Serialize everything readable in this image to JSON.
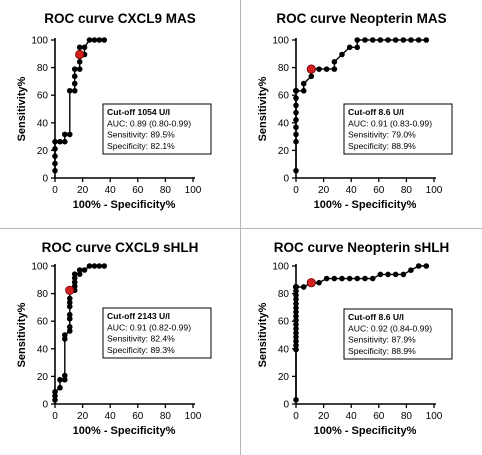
{
  "chart_data": [
    {
      "type": "line",
      "title": "ROC curve CXCL9 MAS",
      "xlabel": "100% - Specificity%",
      "ylabel": "Sensitivity%",
      "xlim": [
        0,
        100
      ],
      "ylim": [
        0,
        100
      ],
      "x_ticks": [
        "0",
        "20",
        "40",
        "60",
        "80",
        "100"
      ],
      "y_ticks": [
        "0",
        "20",
        "40",
        "60",
        "80",
        "100"
      ],
      "grid": false,
      "series": [
        {
          "x": [
            0,
            0,
            0,
            0,
            0,
            3.6,
            7.1,
            7.1,
            10.7,
            10.7,
            14.3,
            14.3,
            14.3,
            14.3,
            17.9,
            17.9,
            17.9,
            17.9,
            17.9,
            21.4,
            21.4,
            25,
            28.6,
            32.1,
            35.7
          ],
          "y": [
            5.3,
            10.5,
            15.8,
            21.1,
            26.3,
            26.3,
            26.3,
            31.6,
            31.6,
            63.2,
            63.2,
            68.4,
            73.7,
            78.9,
            78.9,
            84.2,
            89.5,
            94.7,
            89.5,
            89.5,
            94.7,
            100,
            100,
            100,
            100
          ]
        }
      ],
      "cutoff_point": {
        "x": 17.9,
        "y": 89.5
      },
      "cutoff": {
        "head": "Cut-off 1054 U/l",
        "auc": "AUC: 0.89 (0.80-0.99)",
        "sensitivity": "Sensitivity: 89.5%",
        "specificity": "Specificity: 82.1%"
      }
    },
    {
      "type": "line",
      "title": "ROC curve Neopterin MAS",
      "xlabel": "100% - Specificity%",
      "ylabel": "Sensitivity%",
      "xlim": [
        0,
        100
      ],
      "ylim": [
        0,
        100
      ],
      "x_ticks": [
        "0",
        "20",
        "40",
        "60",
        "80",
        "100"
      ],
      "y_ticks": [
        "0",
        "20",
        "40",
        "60",
        "80",
        "100"
      ],
      "grid": false,
      "series": [
        {
          "x": [
            0,
            0,
            0,
            0,
            0,
            0,
            0,
            0,
            0,
            0,
            0,
            0,
            0,
            0,
            0,
            5.6,
            5.6,
            11.1,
            11.1,
            16.7,
            22.2,
            27.8,
            27.8,
            33.3,
            38.9,
            44.4,
            44.4,
            50,
            55.6,
            61.1,
            66.7,
            72.2,
            77.8,
            83.3,
            88.9,
            94.4
          ],
          "y": [
            5.3,
            26.3,
            31.6,
            36.8,
            42.1,
            47.4,
            52.6,
            57.9,
            63.2,
            63.2,
            63.2,
            63.2,
            63.2,
            63.2,
            63.2,
            63.2,
            68.4,
            73.7,
            78.9,
            78.9,
            78.9,
            78.9,
            84.2,
            89.5,
            94.7,
            94.7,
            100,
            100,
            100,
            100,
            100,
            100,
            100,
            100,
            100,
            100
          ]
        }
      ],
      "cutoff_point": {
        "x": 11.1,
        "y": 78.9
      },
      "cutoff": {
        "head": "Cut-off 8.6 U/l",
        "auc": "AUC: 0.91 (0.83-0.99)",
        "sensitivity": "Sensitivity: 79.0%",
        "specificity": "Specificity: 88.9%"
      }
    },
    {
      "type": "line",
      "title": "ROC curve CXCL9 sHLH",
      "xlabel": "100% - Specificity%",
      "ylabel": "Sensitivity%",
      "xlim": [
        0,
        100
      ],
      "ylim": [
        0,
        100
      ],
      "x_ticks": [
        "0",
        "20",
        "40",
        "60",
        "80",
        "100"
      ],
      "y_ticks": [
        "0",
        "20",
        "40",
        "60",
        "80",
        "100"
      ],
      "grid": false,
      "series": [
        {
          "x": [
            0,
            0,
            0,
            3.6,
            3.6,
            7.1,
            7.1,
            7.1,
            7.1,
            10.7,
            10.7,
            10.7,
            10.7,
            10.7,
            10.7,
            10.7,
            10.7,
            14.3,
            14.3,
            14.3,
            14.3,
            14.3,
            17.9,
            17.9,
            21.4,
            25,
            28.6,
            32.1,
            35.7
          ],
          "y": [
            2.9,
            5.9,
            8.8,
            11.8,
            17.6,
            17.6,
            20.6,
            47.1,
            50,
            52.9,
            55.9,
            61.8,
            64.7,
            70.6,
            73.5,
            76.5,
            82.4,
            82.4,
            85.3,
            88.2,
            91.2,
            94.1,
            94.1,
            97.1,
            97.1,
            100,
            100,
            100,
            100
          ]
        }
      ],
      "cutoff_point": {
        "x": 10.7,
        "y": 82.4
      },
      "cutoff": {
        "head": "Cut-off 2143 U/l",
        "auc": "AUC: 0.91 (0.82-0.99)",
        "sensitivity": "Sensitivity: 82.4%",
        "specificity": "Specificity: 89.3%"
      }
    },
    {
      "type": "line",
      "title": "ROC curve Neopterin sHLH",
      "xlabel": "100% - Specificity%",
      "ylabel": "Sensitivity%",
      "xlim": [
        0,
        100
      ],
      "ylim": [
        0,
        100
      ],
      "x_ticks": [
        "0",
        "20",
        "40",
        "60",
        "80",
        "100"
      ],
      "y_ticks": [
        "0",
        "20",
        "40",
        "60",
        "80",
        "100"
      ],
      "grid": false,
      "series": [
        {
          "x": [
            0,
            0,
            0,
            0,
            0,
            0,
            0,
            0,
            0,
            0,
            0,
            0,
            0,
            0,
            0,
            0,
            0,
            0,
            0,
            0,
            0,
            0,
            0,
            0,
            0,
            0,
            0,
            0,
            5.6,
            11.1,
            16.7,
            22.2,
            27.8,
            33.3,
            38.9,
            44.4,
            50,
            55.6,
            61.1,
            66.7,
            72.2,
            77.8,
            83.3,
            88.9,
            94.4
          ],
          "y": [
            3,
            39.4,
            42.4,
            45.5,
            48.5,
            51.5,
            54.5,
            57.6,
            60.6,
            63.6,
            66.7,
            69.7,
            72.7,
            75.8,
            78.8,
            81.8,
            84.8,
            84.8,
            84.8,
            84.8,
            84.8,
            84.8,
            84.8,
            84.8,
            84.8,
            84.8,
            84.8,
            84.8,
            84.8,
            87.9,
            87.9,
            90.9,
            90.9,
            90.9,
            90.9,
            90.9,
            90.9,
            90.9,
            93.9,
            93.9,
            93.9,
            93.9,
            97,
            100,
            100
          ]
        }
      ],
      "cutoff_point": {
        "x": 11.1,
        "y": 87.9
      },
      "cutoff": {
        "head": "Cut-off 8.6 U/l",
        "auc": "AUC: 0.92 (0.84-0.99)",
        "sensitivity": "Sensitivity: 87.9%",
        "specificity": "Specificity: 88.9%"
      }
    }
  ]
}
